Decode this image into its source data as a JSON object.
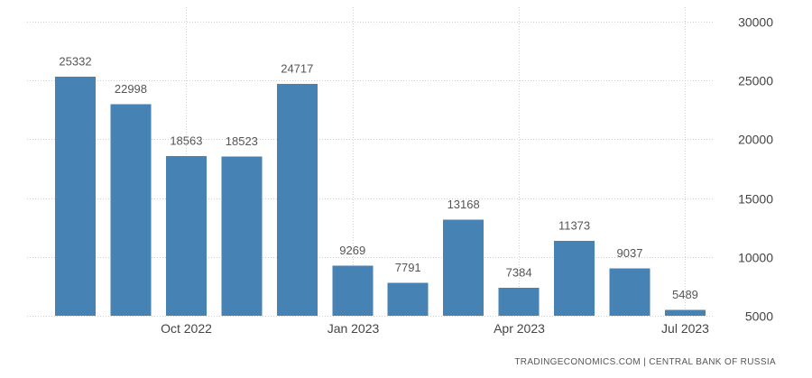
{
  "chart_data": {
    "type": "bar",
    "x": [
      "2022-08",
      "2022-09",
      "2022-10",
      "2022-11",
      "2022-12",
      "2023-01",
      "2023-02",
      "2023-03",
      "2023-04",
      "2023-05",
      "2023-06",
      "2023-07"
    ],
    "values": [
      25332,
      22998,
      18563,
      18523,
      24717,
      9269,
      7791,
      13168,
      7384,
      11373,
      9037,
      5489
    ],
    "xticks": [
      {
        "x": "2022-10",
        "label": "Oct 2022"
      },
      {
        "x": "2023-01",
        "label": "Jan 2023"
      },
      {
        "x": "2023-04",
        "label": "Apr 2023"
      },
      {
        "x": "2023-07",
        "label": "Jul 2023"
      }
    ],
    "yticks": [
      5000,
      10000,
      15000,
      20000,
      25000,
      30000
    ],
    "ylim": [
      5000,
      30000
    ],
    "yaxis_side": "right",
    "grid": true,
    "bar_color": "#4682B4"
  },
  "source": "TRADINGECONOMICS.COM | CENTRAL BANK OF RUSSIA"
}
